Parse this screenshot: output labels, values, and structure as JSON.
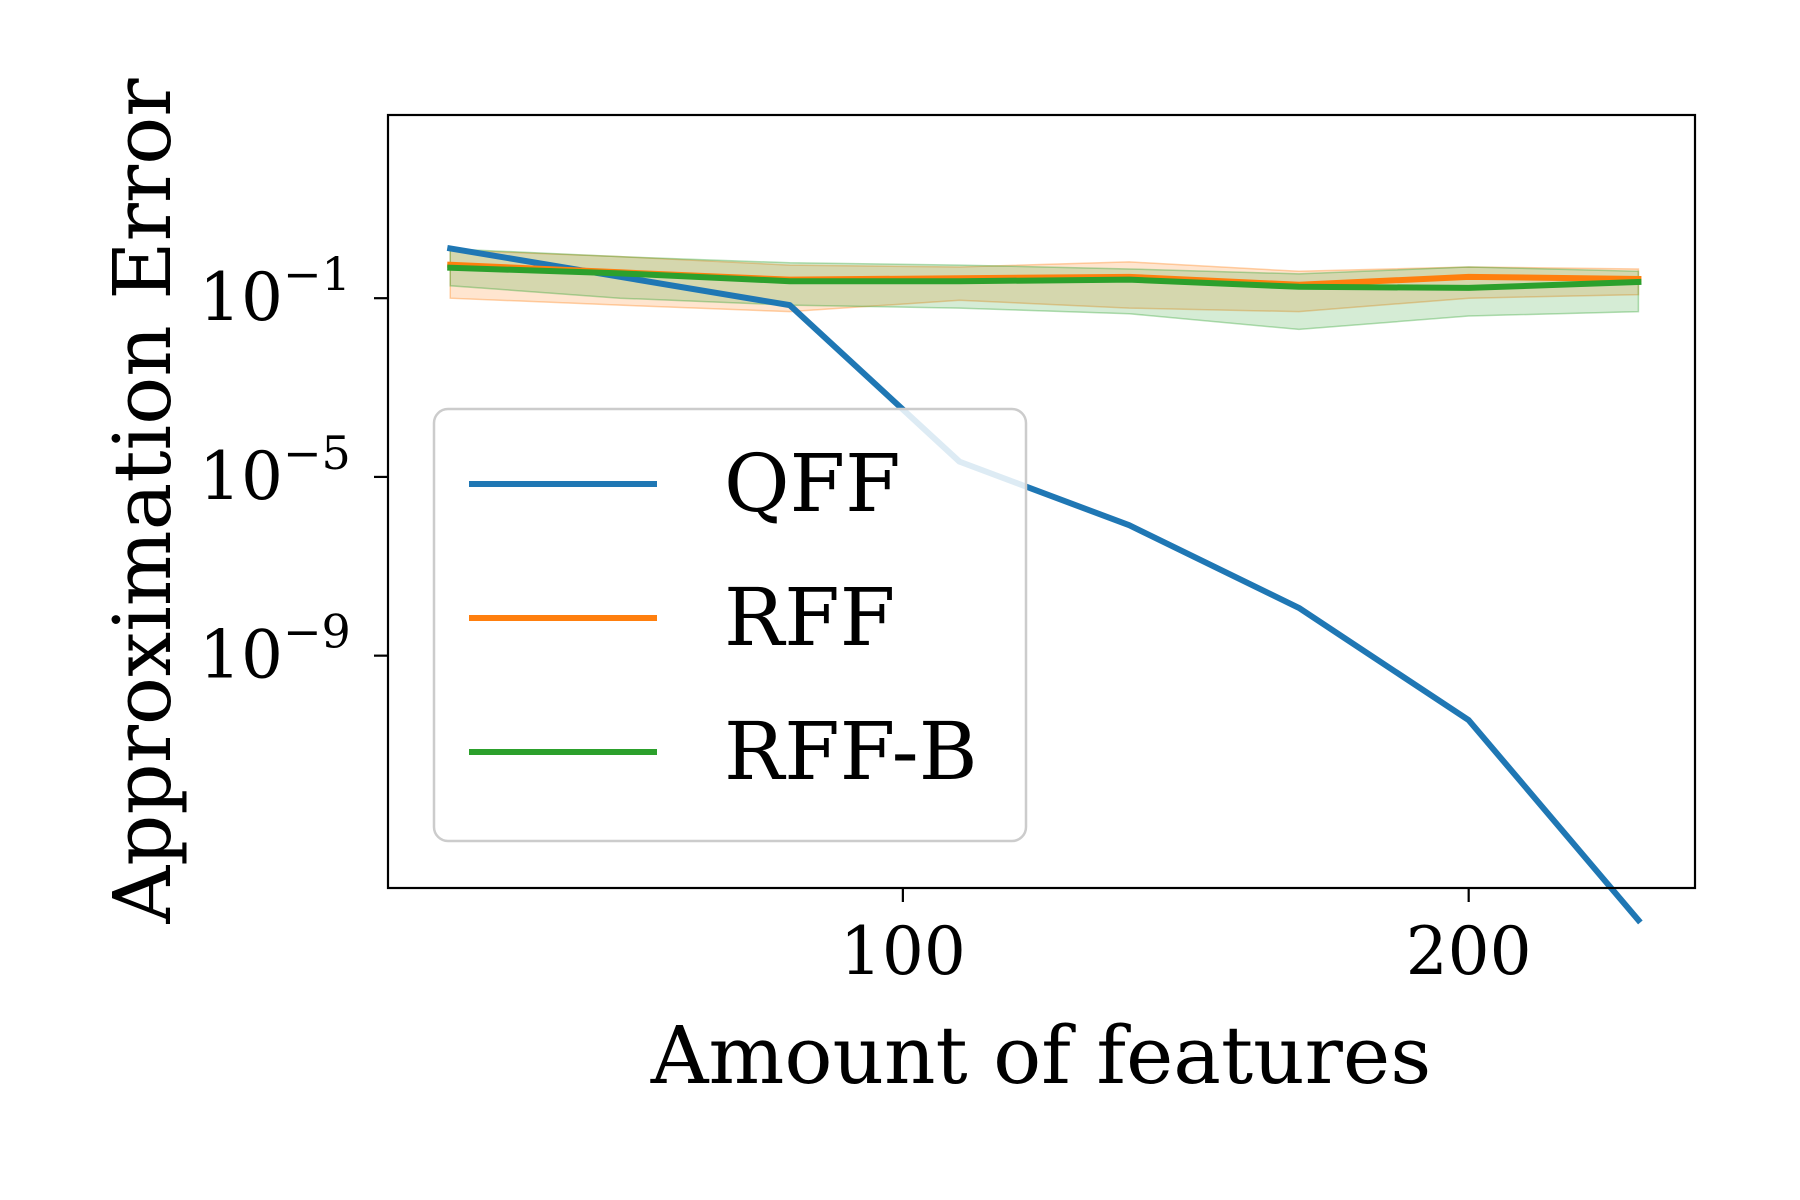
{
  "chart_data": {
    "type": "line",
    "title": "",
    "xlabel": "Amount of features",
    "ylabel": "Approximation Error",
    "yscale": "log",
    "xlim": [
      9,
      240
    ],
    "ylim_exp": [
      -14.2,
      3.1
    ],
    "x_ticks": [
      {
        "value": 100,
        "label": "100"
      },
      {
        "value": 200,
        "label": "200"
      }
    ],
    "y_ticks": [
      {
        "exp": -1,
        "base": "10",
        "sup": "−1"
      },
      {
        "exp": -5,
        "base": "10",
        "sup": "−5"
      },
      {
        "exp": -9,
        "base": "10",
        "sup": "−9"
      }
    ],
    "grid": false,
    "legend_position": "center-left",
    "series": [
      {
        "name": "QFF",
        "color": "#1f77b4",
        "x": [
          20,
          80,
          110,
          140,
          170,
          200,
          230
        ],
        "y": [
          1.3,
          0.07,
          2.2e-05,
          8.3e-07,
          1.17e-08,
          3.6e-11,
          1.2e-15
        ]
      },
      {
        "name": "RFF",
        "color": "#ff7f0e",
        "x": [
          20,
          50,
          80,
          110,
          140,
          170,
          200,
          230
        ],
        "y": [
          0.56,
          0.38,
          0.26,
          0.28,
          0.3,
          0.2,
          0.3,
          0.27
        ],
        "y_lower": [
          0.1,
          0.07,
          0.05,
          0.09,
          0.06,
          0.05,
          0.1,
          0.12
        ],
        "y_upper": [
          1.2,
          0.85,
          0.55,
          0.5,
          0.65,
          0.4,
          0.5,
          0.45
        ]
      },
      {
        "name": "RFF-B",
        "color": "#2ca02c",
        "x": [
          20,
          50,
          80,
          110,
          140,
          170,
          200,
          230
        ],
        "y": [
          0.48,
          0.36,
          0.24,
          0.24,
          0.26,
          0.18,
          0.17,
          0.23
        ],
        "y_lower": [
          0.19,
          0.1,
          0.07,
          0.06,
          0.045,
          0.02,
          0.04,
          0.05
        ],
        "y_upper": [
          1.27,
          0.85,
          0.62,
          0.55,
          0.45,
          0.35,
          0.5,
          0.4
        ]
      }
    ]
  }
}
